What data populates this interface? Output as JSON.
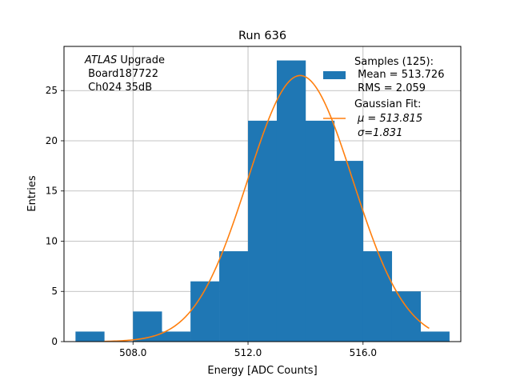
{
  "chart_data": {
    "type": "bar",
    "title": "Run 636",
    "xlabel": "Energy [ADC Counts]",
    "ylabel": "Entries",
    "xlim": [
      505.6,
      519.4
    ],
    "ylim": [
      0,
      29.4
    ],
    "xticks": [
      508.0,
      512.0,
      516.0
    ],
    "xtick_labels": [
      "508.0",
      "512.0",
      "516.0"
    ],
    "yticks": [
      0,
      5,
      10,
      15,
      20,
      25
    ],
    "ytick_labels": [
      "0",
      "5",
      "10",
      "15",
      "20",
      "25"
    ],
    "grid": true,
    "histogram": {
      "name": "Samples (125):",
      "color": "#1f77b4",
      "bin_edges": [
        506,
        507,
        508,
        509,
        510,
        511,
        512,
        513,
        514,
        515,
        516,
        517,
        518,
        519
      ],
      "counts": [
        1,
        0,
        3,
        1,
        6,
        9,
        22,
        28,
        22,
        18,
        9,
        5,
        1
      ]
    },
    "fit": {
      "name": "Gaussian Fit:",
      "color": "#ff7f0e",
      "mu": 513.815,
      "sigma": 1.831,
      "amplitude": 26.5,
      "x_range": [
        507.0,
        518.3
      ]
    },
    "legend": {
      "placement": "top-right",
      "samples_lines": [
        "Samples (125):",
        " Mean = 513.726",
        " RMS = 2.059"
      ],
      "fit_lines": [
        "Gaussian Fit:",
        "μ = 513.815",
        "σ=1.831"
      ]
    },
    "annotation": {
      "italic": "ATLAS",
      "rest": " Upgrade",
      "line2": " Board187722",
      "line3": " Ch024 35dB"
    }
  }
}
